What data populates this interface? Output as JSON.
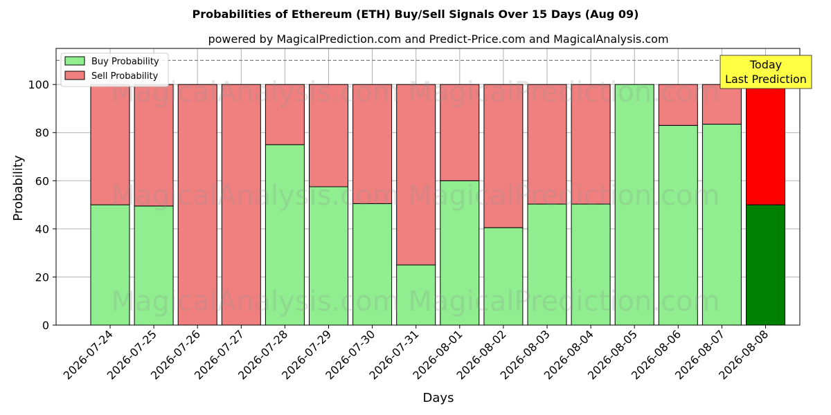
{
  "chart_data": {
    "type": "bar",
    "stacked": true,
    "title": "Probabilities of Ethereum (ETH) Buy/Sell Signals Over 15 Days (Aug 09)",
    "subtitle": "powered by MagicalPrediction.com and Predict-Price.com and MagicalAnalysis.com",
    "xlabel": "Days",
    "ylabel": "Probability",
    "ylim": [
      0,
      115
    ],
    "yticks": [
      0,
      20,
      40,
      60,
      80,
      100
    ],
    "grid": true,
    "legend_position": "top-left",
    "reference_line": 110,
    "categories": [
      "2026-07-24",
      "2026-07-25",
      "2026-07-26",
      "2026-07-27",
      "2026-07-28",
      "2026-07-29",
      "2026-07-30",
      "2026-07-31",
      "2026-08-01",
      "2026-08-02",
      "2026-08-03",
      "2026-08-04",
      "2026-08-05",
      "2026-08-06",
      "2026-08-07",
      "2026-08-08"
    ],
    "series": [
      {
        "name": "Buy Probability",
        "color": "#90ee90",
        "values": [
          50,
          49.5,
          0,
          0,
          75,
          57.5,
          50.5,
          25,
          60,
          40.5,
          50.3,
          50.3,
          100,
          83,
          83.5,
          50
        ]
      },
      {
        "name": "Sell Probability",
        "color": "#f08080",
        "values": [
          50,
          50.5,
          100,
          100,
          25,
          42.5,
          49.5,
          75,
          40,
          59.5,
          49.7,
          49.7,
          0,
          17,
          16.5,
          50
        ]
      }
    ],
    "highlight": {
      "index": 15,
      "buy_color": "#008000",
      "sell_color": "#ff0000",
      "annotation": [
        "Today",
        "Last Prediction"
      ],
      "annotation_bg": "#ffff44"
    },
    "watermark": "MagicalAnalysis.com   MagicalPrediction.com"
  }
}
